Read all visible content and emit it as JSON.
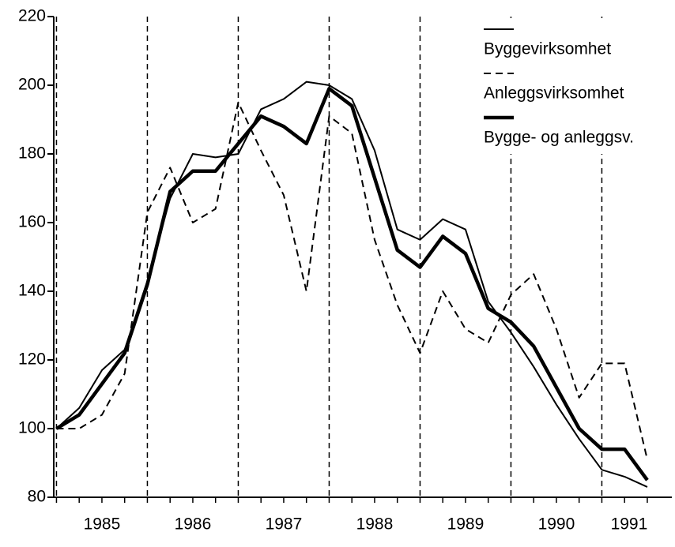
{
  "chart_data": {
    "type": "line",
    "x": [
      1985,
      1985.25,
      1985.5,
      1985.75,
      1986,
      1986.25,
      1986.5,
      1986.75,
      1987,
      1987.25,
      1987.5,
      1987.75,
      1988,
      1988.25,
      1988.5,
      1988.75,
      1989,
      1989.25,
      1989.5,
      1989.75,
      1990,
      1990.25,
      1990.5,
      1990.75,
      1991,
      1991.25,
      1991.5
    ],
    "series": [
      {
        "name": "Byggevirksomhet",
        "color": "#000000",
        "style": "solid",
        "width": 2,
        "values": [
          100,
          106,
          117,
          123,
          143,
          167,
          180,
          179,
          180,
          193,
          196,
          201,
          200,
          196,
          181,
          158,
          155,
          161,
          158,
          137,
          128,
          118,
          107,
          97,
          88,
          86,
          83
        ]
      },
      {
        "name": "Anleggsvirksomhet",
        "color": "#000000",
        "style": "dashed",
        "width": 2,
        "values": [
          100,
          100,
          104,
          116,
          163,
          176,
          160,
          164,
          195,
          181,
          168,
          140,
          191,
          186,
          155,
          136,
          122,
          140,
          129,
          125,
          139,
          145,
          129,
          109,
          119,
          119,
          91
        ]
      },
      {
        "name": "Bygge- og anleggsv.",
        "color": "#000000",
        "style": "solid",
        "width": 4.5,
        "values": [
          100,
          104,
          113,
          122,
          142,
          169,
          175,
          175,
          183,
          191,
          188,
          183,
          199,
          194,
          173,
          152,
          147,
          156,
          151,
          135,
          131,
          124,
          112,
          100,
          94,
          94,
          85
        ]
      }
    ],
    "xlim": [
      1984.97,
      1991.77
    ],
    "xticks": [
      {
        "value": 1985.5,
        "label": "1985"
      },
      {
        "value": 1986.5,
        "label": "1986"
      },
      {
        "value": 1987.5,
        "label": "1987"
      },
      {
        "value": 1988.5,
        "label": "1988"
      },
      {
        "value": 1989.5,
        "label": "1989"
      },
      {
        "value": 1990.5,
        "label": "1990"
      },
      {
        "value": 1991.3,
        "label": "1991"
      }
    ],
    "year_lines": [
      1985,
      1986,
      1987,
      1988,
      1989,
      1990,
      1991
    ],
    "ylim": [
      80,
      220
    ],
    "yticks": [
      80,
      100,
      120,
      140,
      160,
      180,
      200,
      220
    ],
    "legend": "upper right"
  }
}
